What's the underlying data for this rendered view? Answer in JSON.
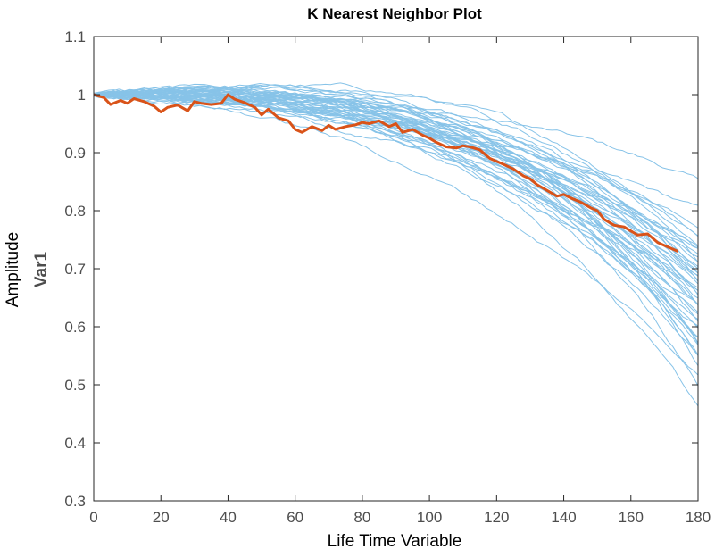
{
  "chart_data": {
    "type": "line",
    "title": "K Nearest Neighbor Plot",
    "xlabel": "Life Time Variable",
    "ylabel": "Amplitude",
    "ylabel2": "Var1",
    "xlim": [
      0,
      180
    ],
    "ylim": [
      0.3,
      1.1
    ],
    "xticks": [
      "0",
      "20",
      "40",
      "60",
      "80",
      "100",
      "120",
      "140",
      "160",
      "180"
    ],
    "yticks": [
      "0.3",
      "0.4",
      "0.5",
      "0.6",
      "0.7",
      "0.8",
      "0.9",
      "1",
      "1.1"
    ],
    "grid": false,
    "colors": {
      "neighbors": "#87c3e8",
      "highlight": "#d95319",
      "axis": "#262626"
    },
    "neighbors": {
      "count": 50,
      "x_start": 0,
      "x_end": 180,
      "start_value": 1.0,
      "end_values": [
        0.85,
        0.8,
        0.78,
        0.76,
        0.75,
        0.74,
        0.73,
        0.72,
        0.71,
        0.7,
        0.7,
        0.69,
        0.68,
        0.68,
        0.67,
        0.66,
        0.66,
        0.65,
        0.64,
        0.63,
        0.63,
        0.62,
        0.61,
        0.6,
        0.59,
        0.58,
        0.57,
        0.56,
        0.55,
        0.53,
        0.52,
        0.5,
        0.46,
        0.72,
        0.7,
        0.67,
        0.65,
        0.62,
        0.6,
        0.58,
        0.74,
        0.71,
        0.69,
        0.66,
        0.64,
        0.61,
        0.57,
        0.55,
        0.73,
        0.68
      ]
    },
    "highlight_series": {
      "name": "",
      "x": [
        0,
        3,
        5,
        8,
        10,
        12,
        15,
        18,
        20,
        22,
        25,
        28,
        30,
        32,
        35,
        38,
        40,
        42,
        45,
        48,
        50,
        52,
        55,
        58,
        60,
        62,
        65,
        68,
        70,
        72,
        75,
        78,
        80,
        82,
        85,
        88,
        90,
        92,
        95,
        98,
        100,
        102,
        105,
        108,
        110,
        112,
        115,
        118,
        120,
        122,
        125,
        128,
        130,
        132,
        135,
        138,
        140,
        142,
        145,
        148,
        150,
        152,
        155,
        158,
        160,
        162,
        165,
        168,
        170,
        172,
        174
      ],
      "y": [
        1.0,
        0.995,
        0.983,
        0.99,
        0.985,
        0.993,
        0.988,
        0.98,
        0.97,
        0.978,
        0.982,
        0.972,
        0.988,
        0.985,
        0.983,
        0.985,
        1.0,
        0.992,
        0.986,
        0.978,
        0.965,
        0.975,
        0.96,
        0.955,
        0.94,
        0.935,
        0.945,
        0.938,
        0.947,
        0.94,
        0.945,
        0.948,
        0.952,
        0.95,
        0.955,
        0.945,
        0.95,
        0.935,
        0.94,
        0.93,
        0.925,
        0.918,
        0.91,
        0.908,
        0.912,
        0.91,
        0.905,
        0.89,
        0.885,
        0.88,
        0.872,
        0.86,
        0.855,
        0.845,
        0.835,
        0.825,
        0.828,
        0.822,
        0.815,
        0.805,
        0.8,
        0.785,
        0.775,
        0.772,
        0.765,
        0.758,
        0.76,
        0.745,
        0.74,
        0.735,
        0.73
      ]
    }
  }
}
